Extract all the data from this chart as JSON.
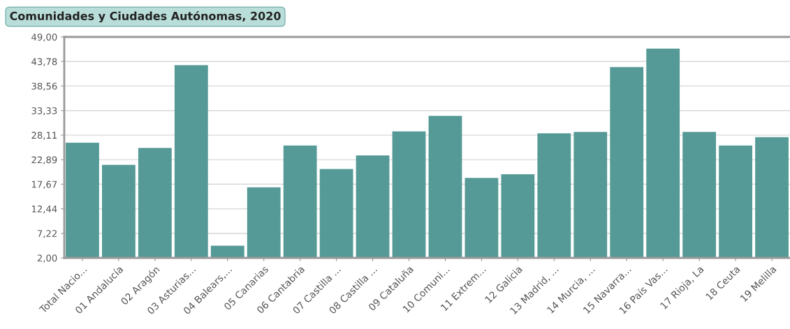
{
  "chart_data": {
    "type": "bar",
    "title": "Comunidades y Ciudades Autónomas, 2020",
    "categories": [
      "Total Nacio...",
      "01 Andalucía",
      "02 Aragón",
      "03 Asturias...",
      "04 Balears,...",
      "05 Canarias",
      "06 Cantabria",
      "07 Castilla ...",
      "08 Castilla ...",
      "09 Cataluña",
      "10 Comuni...",
      "11 Extrem...",
      "12 Galicia",
      "13 Madrid, ...",
      "14 Murcia, ...",
      "15 Navarra...",
      "16 País Vas...",
      "17 Rioja, La",
      "18 Ceuta",
      "19 Melilla"
    ],
    "values": [
      26.5,
      21.8,
      25.4,
      43.0,
      4.6,
      17.0,
      25.9,
      20.9,
      23.8,
      28.9,
      32.2,
      19.0,
      19.8,
      28.5,
      28.8,
      42.6,
      46.5,
      28.8,
      25.9,
      27.7
    ],
    "color": "#559a96",
    "ylim": [
      2,
      49
    ],
    "yticks": [
      {
        "value": 2,
        "label": "2,00"
      },
      {
        "value": 7.22,
        "label": "7,22"
      },
      {
        "value": 12.44,
        "label": "12,44"
      },
      {
        "value": 17.67,
        "label": "17,67"
      },
      {
        "value": 22.89,
        "label": "22,89"
      },
      {
        "value": 28.11,
        "label": "28,11"
      },
      {
        "value": 33.33,
        "label": "33,33"
      },
      {
        "value": 38.56,
        "label": "38,56"
      },
      {
        "value": 43.78,
        "label": "43,78"
      },
      {
        "value": 49,
        "label": "49,00"
      }
    ],
    "grid": "y"
  }
}
